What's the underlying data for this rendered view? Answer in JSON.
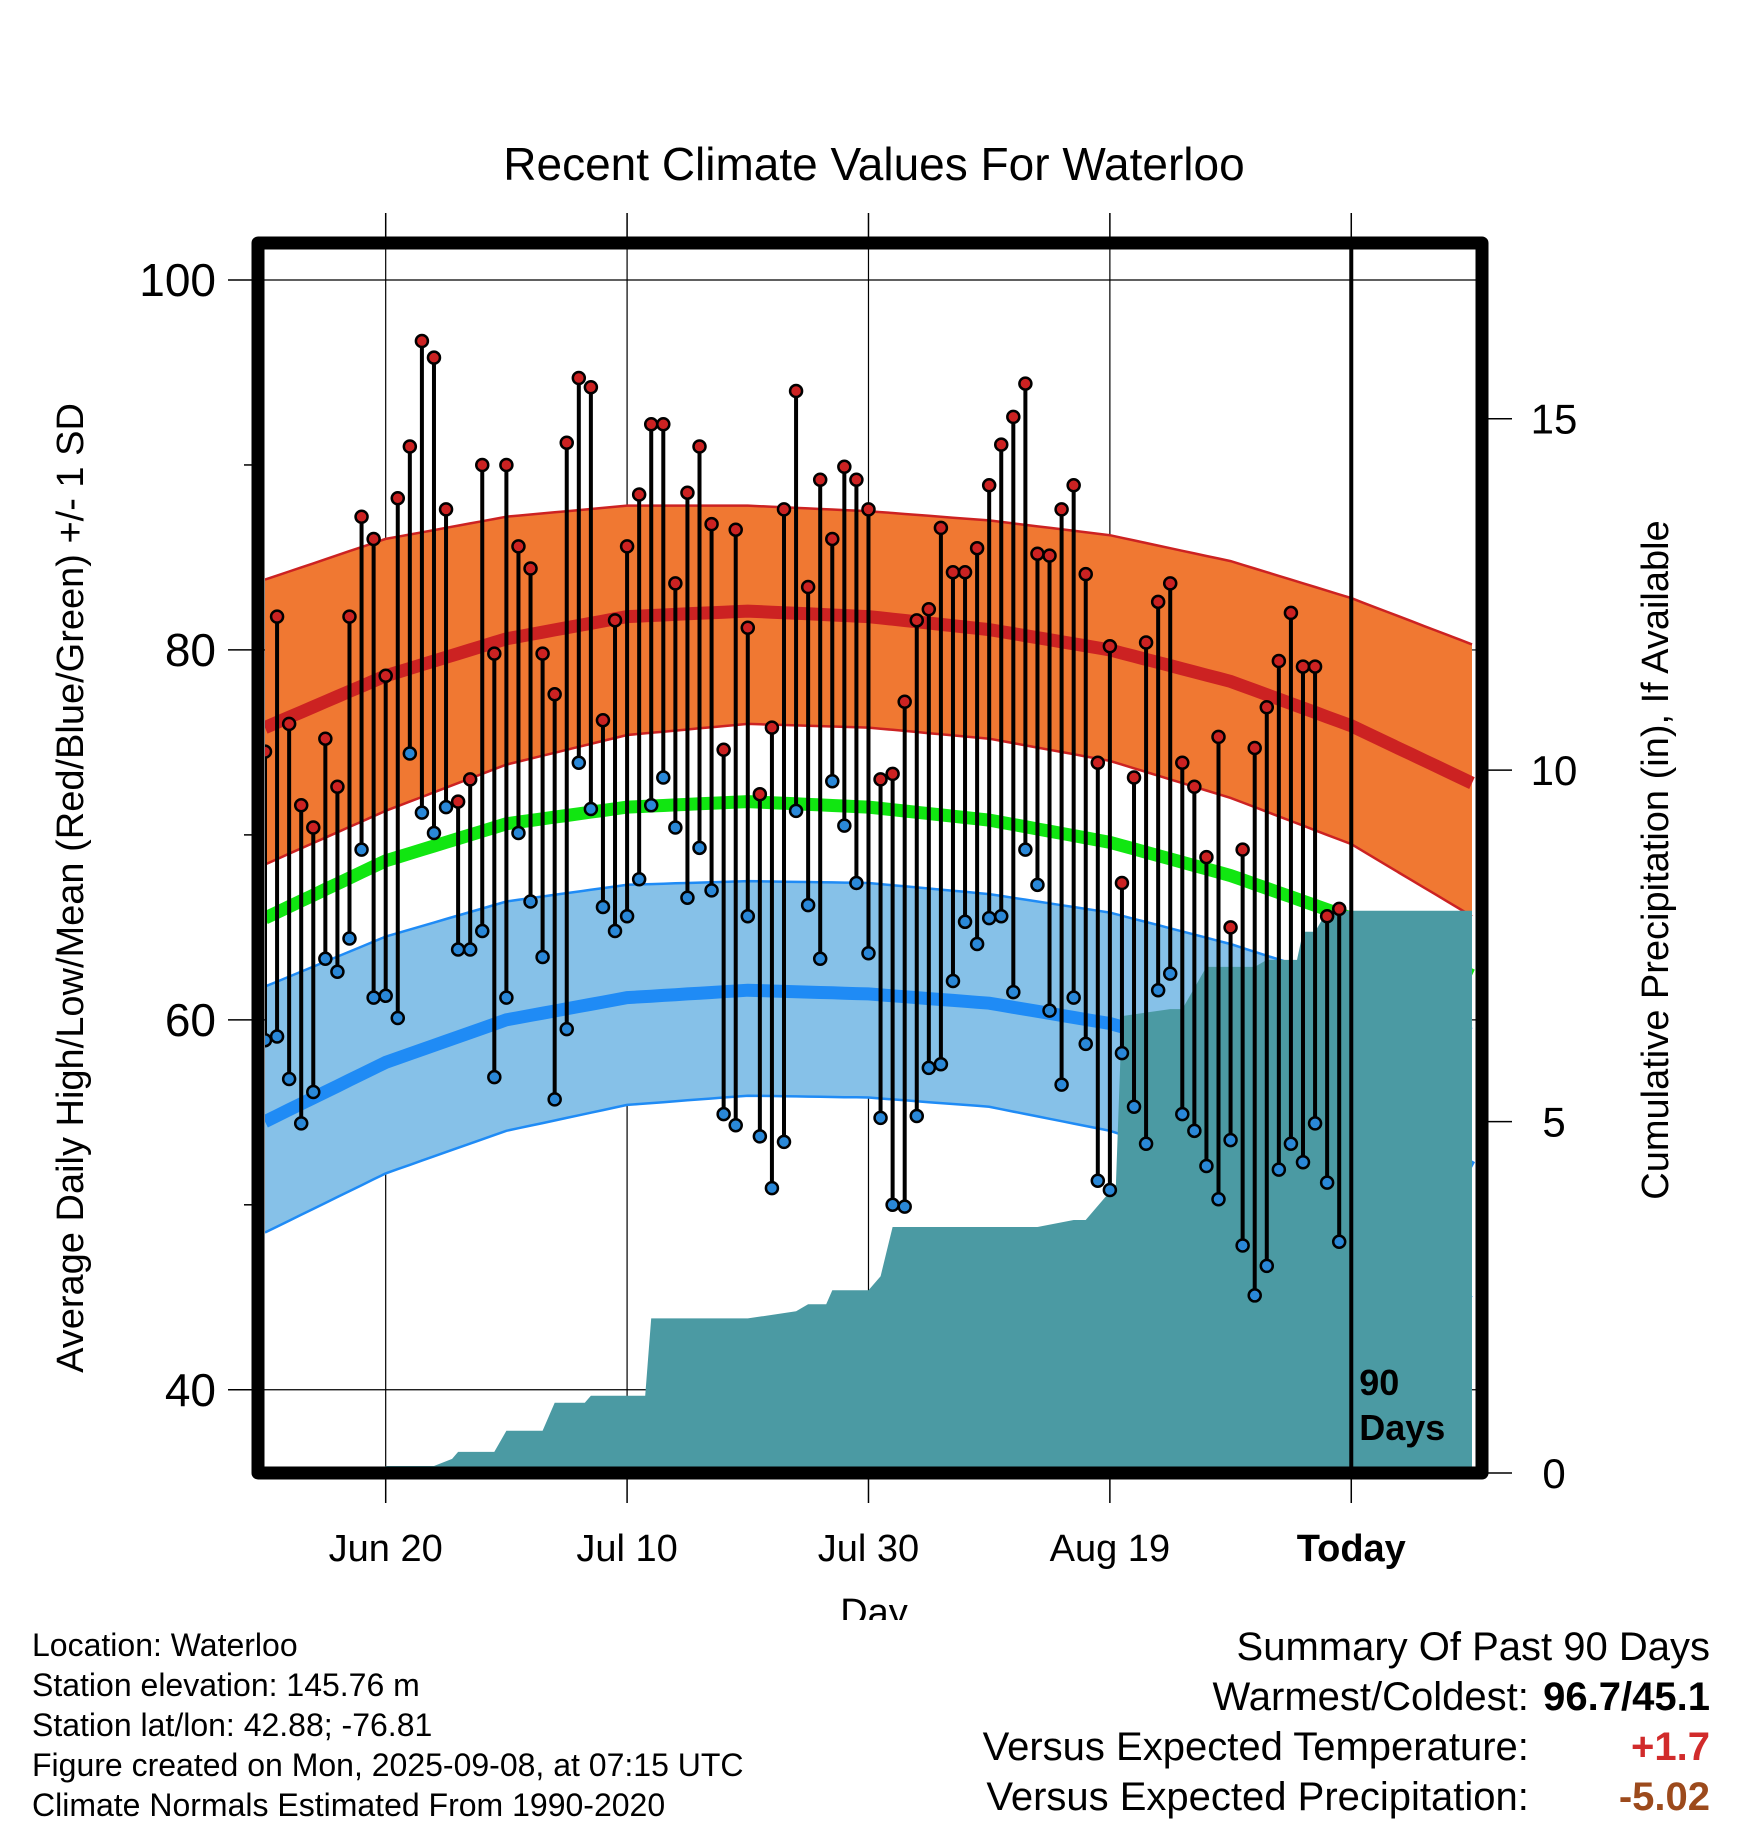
{
  "chart_data": {
    "type": "line",
    "title": "Recent Climate Values For Waterloo",
    "xlabel": "Day",
    "ylabel": "Average Daily High/Low/Mean (Red/Blue/Green) +/- 1 SD",
    "y2label": "Cumulative Precipitation (in), If Available",
    "ylim": [
      35.5,
      102
    ],
    "y2lim": [
      0,
      17.5
    ],
    "xlim": [
      0,
      100.5
    ],
    "x_tick_labels": [
      "Jun 20",
      "Jul 10",
      "Jul 30",
      "Aug 19",
      "Today"
    ],
    "x_ticks": [
      10,
      30,
      50,
      70,
      90
    ],
    "y_ticks": [
      40,
      60,
      80,
      100
    ],
    "y_minor_ticks": [
      50,
      70,
      90
    ],
    "y2_ticks": [
      0,
      5,
      10,
      15
    ],
    "grid": true,
    "today_marker": {
      "x": 90,
      "label": "90 Days"
    },
    "colors": {
      "high_band": "#f07832",
      "high_line": "#cc2222",
      "low_band": "#86c1e8",
      "low_line": "#1f8bf5",
      "mean_line": "#11e611",
      "precip_fill": "#4b9aa3",
      "high_dot": "#cc2222",
      "low_dot": "#2a88d8"
    },
    "series": [
      {
        "name": "Normal High",
        "x": [
          0,
          10,
          20,
          30,
          40,
          50,
          60,
          70,
          80,
          90,
          100
        ],
        "values": [
          75.8,
          78.6,
          80.6,
          81.8,
          82.1,
          81.8,
          81.1,
          80.0,
          78.3,
          75.9,
          72.8
        ]
      },
      {
        "name": "Normal Mean",
        "x": [
          0,
          10,
          20,
          30,
          40,
          50,
          60,
          70,
          80,
          90,
          100
        ],
        "values": [
          65.5,
          68.6,
          70.6,
          71.5,
          71.8,
          71.5,
          70.8,
          69.6,
          67.8,
          65.5,
          62.4
        ]
      },
      {
        "name": "Normal Low",
        "x": [
          0,
          10,
          20,
          30,
          40,
          50,
          60,
          70,
          80,
          90,
          100
        ],
        "values": [
          54.5,
          57.7,
          60.0,
          61.2,
          61.6,
          61.4,
          60.9,
          59.8,
          58.0,
          55.5,
          52.0
        ]
      },
      {
        "name": "High +1 SD",
        "x": [
          0,
          10,
          20,
          30,
          40,
          50,
          60,
          70,
          80,
          90,
          100
        ],
        "values": [
          83.8,
          86.0,
          87.2,
          87.8,
          87.8,
          87.5,
          87.0,
          86.2,
          84.8,
          82.8,
          80.3
        ]
      },
      {
        "name": "High -1 SD",
        "x": [
          0,
          10,
          20,
          30,
          40,
          50,
          60,
          70,
          80,
          90,
          100
        ],
        "values": [
          68.4,
          71.3,
          73.8,
          75.4,
          76.0,
          75.8,
          75.2,
          74.0,
          72.0,
          69.5,
          65.6
        ]
      },
      {
        "name": "Low +1 SD",
        "x": [
          0,
          10,
          20,
          30,
          40,
          50,
          60,
          70,
          80,
          90,
          100
        ],
        "values": [
          61.8,
          64.5,
          66.4,
          67.3,
          67.5,
          67.4,
          66.8,
          65.8,
          64.1,
          62.0,
          59.5
        ]
      },
      {
        "name": "Low -1 SD",
        "x": [
          0,
          10,
          20,
          30,
          40,
          50,
          60,
          70,
          80,
          90,
          100
        ],
        "values": [
          48.5,
          51.7,
          54.0,
          55.4,
          55.9,
          55.8,
          55.3,
          54.0,
          51.9,
          48.9,
          45.0
        ]
      }
    ],
    "daily": {
      "x": [
        0,
        1,
        2,
        3,
        4,
        5,
        6,
        7,
        8,
        9,
        10,
        11,
        12,
        13,
        14,
        15,
        16,
        17,
        18,
        19,
        20,
        21,
        22,
        23,
        24,
        25,
        26,
        27,
        28,
        29,
        30,
        31,
        32,
        33,
        34,
        35,
        36,
        37,
        38,
        39,
        40,
        41,
        42,
        43,
        44,
        45,
        46,
        47,
        48,
        49,
        50,
        51,
        52,
        53,
        54,
        55,
        56,
        57,
        58,
        59,
        60,
        61,
        62,
        63,
        64,
        65,
        66,
        67,
        68,
        69,
        70,
        71,
        72,
        73,
        74,
        75,
        76,
        77,
        78,
        79,
        80,
        81,
        82,
        83,
        84,
        85,
        86,
        87,
        88,
        89
      ],
      "high": [
        74.5,
        81.8,
        76.0,
        71.6,
        70.4,
        75.2,
        72.6,
        81.8,
        87.2,
        86.0,
        78.6,
        88.2,
        91.0,
        96.7,
        95.8,
        87.6,
        71.8,
        73.0,
        90.0,
        79.8,
        90.0,
        85.6,
        84.4,
        79.8,
        77.6,
        91.2,
        94.7,
        94.2,
        76.2,
        81.6,
        85.6,
        88.4,
        92.2,
        92.2,
        83.6,
        88.5,
        91.0,
        86.8,
        74.6,
        86.5,
        81.2,
        72.2,
        75.8,
        87.6,
        94.0,
        83.4,
        89.2,
        86.0,
        89.9,
        89.2,
        87.6,
        73.0,
        73.3,
        77.2,
        81.6,
        82.2,
        86.6,
        84.2,
        84.2,
        85.5,
        88.9,
        91.1,
        92.6,
        94.4,
        85.2,
        85.1,
        87.6,
        88.9,
        84.1,
        73.9,
        80.2,
        67.4,
        73.1,
        80.4,
        82.6,
        83.6,
        73.9,
        72.6,
        68.8,
        75.3,
        65.0,
        69.2,
        74.7,
        76.9,
        79.4,
        82.0,
        79.1,
        79.1,
        65.6,
        66.0
      ],
      "low": [
        58.9,
        59.1,
        56.8,
        54.4,
        56.1,
        63.3,
        62.6,
        64.4,
        69.2,
        61.2,
        61.3,
        60.1,
        74.4,
        71.2,
        70.1,
        71.5,
        63.8,
        63.8,
        64.8,
        56.9,
        61.2,
        70.1,
        66.4,
        63.4,
        55.7,
        59.5,
        73.9,
        71.4,
        66.1,
        64.8,
        65.6,
        67.6,
        71.6,
        73.1,
        70.4,
        66.6,
        69.3,
        67.0,
        54.9,
        54.3,
        65.6,
        53.7,
        50.9,
        53.4,
        71.3,
        66.2,
        63.3,
        72.9,
        70.5,
        67.4,
        63.6,
        54.7,
        50.0,
        49.9,
        54.8,
        57.4,
        57.6,
        62.1,
        65.3,
        64.1,
        65.5,
        65.6,
        61.5,
        69.2,
        67.3,
        60.5,
        56.5,
        61.2,
        58.7,
        51.3,
        50.8,
        58.2,
        55.3,
        53.3,
        61.6,
        62.5,
        54.9,
        54.0,
        52.1,
        50.3,
        53.5,
        47.8,
        45.1,
        46.7,
        51.9,
        53.3,
        52.3,
        54.4,
        51.2,
        48.0
      ]
    },
    "precip": {
      "x": [
        0,
        9.5,
        10,
        14,
        15.5,
        16,
        19,
        20,
        23,
        24,
        26.5,
        27,
        31.5,
        32,
        40,
        44,
        45,
        46.5,
        47,
        50,
        51,
        52,
        63,
        64,
        67,
        68,
        70.5,
        71,
        75,
        76,
        78,
        79,
        82,
        83,
        85.5,
        86,
        87,
        88,
        89,
        90,
        100
      ],
      "values": [
        0,
        0,
        0.1,
        0.1,
        0.2,
        0.3,
        0.3,
        0.6,
        0.6,
        1.0,
        1.0,
        1.1,
        1.1,
        2.2,
        2.2,
        2.3,
        2.4,
        2.4,
        2.6,
        2.6,
        2.8,
        3.5,
        3.5,
        3.5,
        3.6,
        3.6,
        4.1,
        6.5,
        6.6,
        6.6,
        7.2,
        7.2,
        7.2,
        7.3,
        7.3,
        7.7,
        7.7,
        8.0,
        8.0,
        8.0,
        8.0
      ]
    }
  },
  "info": {
    "location": "Location: Waterloo",
    "elevation": "Station elevation: 145.76 m",
    "latlon": "Station lat/lon: 42.88; -76.81",
    "created": "Figure created on Mon, 2025-09-08, at 07:15 UTC",
    "normals": "Climate Normals Estimated From 1990-2020"
  },
  "summary": {
    "title": "Summary Of Past 90 Days",
    "warm_cold_label": "Warmest/Coldest:",
    "warm_cold_value": "96.7/45.1",
    "temp_label": "Versus Expected Temperature:",
    "temp_value": "+1.7",
    "precip_label": "Versus Expected Precipitation:",
    "precip_value": "-5.02"
  }
}
